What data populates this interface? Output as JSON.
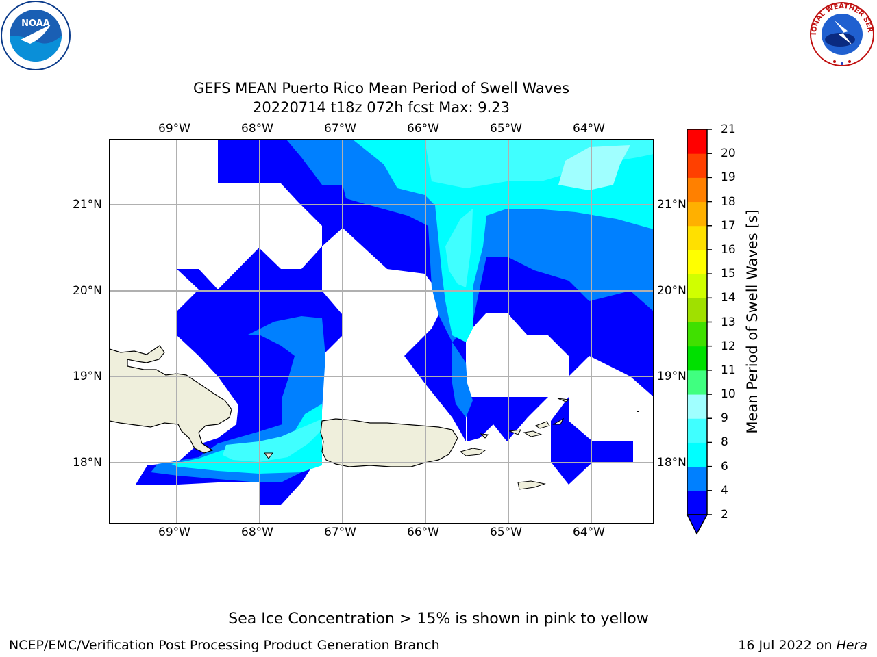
{
  "title_line1": "GEFS MEAN Puerto Rico Mean Period of Swell Waves",
  "title_line2": "20220714 t18z 072h fcst   Max: 9.23",
  "map": {
    "lon_labels": [
      "69°W",
      "68°W",
      "67°W",
      "66°W",
      "65°W",
      "64°W"
    ],
    "lat_labels": [
      "21°N",
      "20°N",
      "19°N",
      "18°N"
    ],
    "land_color": "#efefdc",
    "grid_color": "#b0b0b0"
  },
  "colorbar": {
    "label": "Mean Period of Swell Waves [s]",
    "ticks": [
      "2",
      "4",
      "6",
      "8",
      "9",
      "10",
      "11",
      "12",
      "13",
      "14",
      "15",
      "16",
      "17",
      "18",
      "19",
      "20",
      "21"
    ],
    "colors": [
      "#0000ff",
      "#0080ff",
      "#00ffff",
      "#40ffff",
      "#a0ffff",
      "#40ff80",
      "#00e000",
      "#40e000",
      "#a0e000",
      "#d0ff00",
      "#ffff00",
      "#ffe000",
      "#ffb000",
      "#ff8000",
      "#ff4000",
      "#ff0000"
    ],
    "under_color": "#0000ff"
  },
  "logos": {
    "left": "NOAA",
    "right_ring": "NATIONAL WEATHER SERVICE"
  },
  "footer": {
    "note": "Sea Ice Concentration > 15% is shown in pink to yellow",
    "left": "NCEP/EMC/Verification Post Processing Product Generation Branch",
    "right_date": "16 Jul 2022 on ",
    "right_host": "Hera"
  }
}
